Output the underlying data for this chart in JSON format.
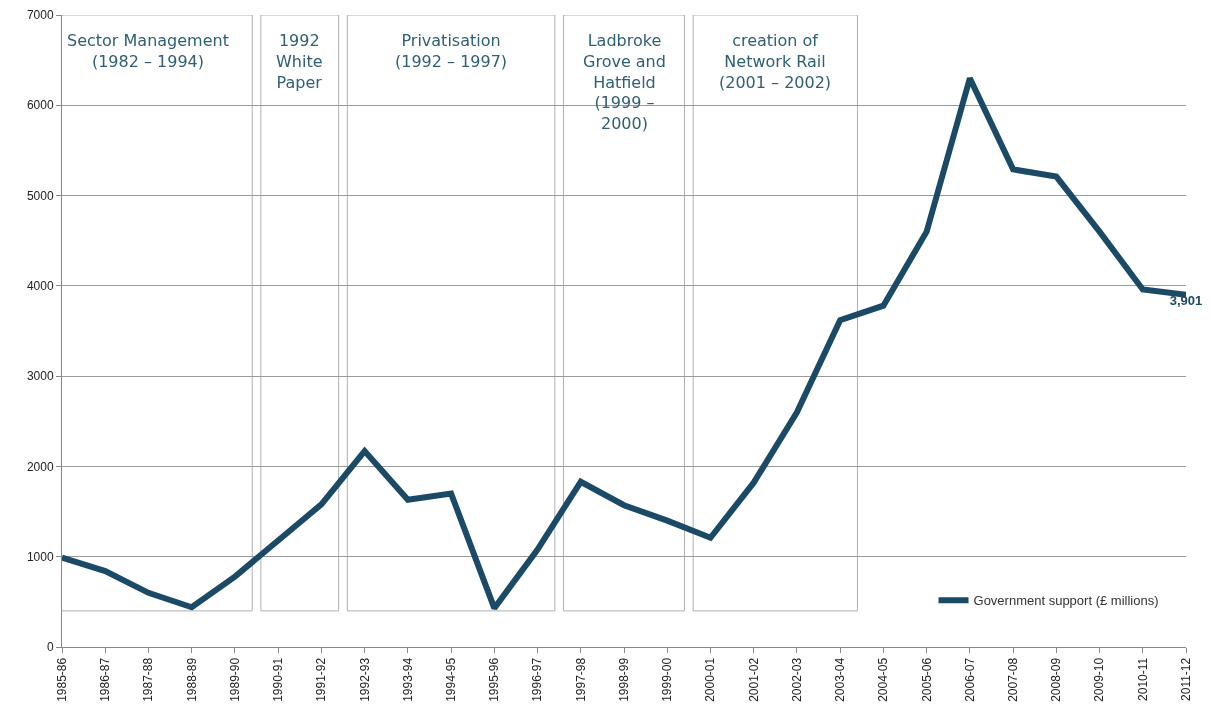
{
  "chart_data": {
    "type": "line",
    "categories": [
      "1985-86",
      "1986-87",
      "1987-88",
      "1988-89",
      "1989-90",
      "1990-91",
      "1991-92",
      "1992-93",
      "1993-94",
      "1994-95",
      "1995-96",
      "1996-97",
      "1997-98",
      "1998-99",
      "1999-00",
      "2000-01",
      "2001-02",
      "2002-03",
      "2003-04",
      "2004-05",
      "2005-06",
      "2006-07",
      "2007-08",
      "2008-09",
      "2009-10",
      "2010-11",
      "2011-12"
    ],
    "series": [
      {
        "name": "Government support (£ millions)",
        "color": "#1b4a66",
        "values": [
          990,
          840,
          600,
          440,
          780,
          1180,
          1580,
          2170,
          1630,
          1700,
          430,
          1080,
          1830,
          1570,
          1400,
          1210,
          1820,
          2600,
          3620,
          3780,
          4600,
          6300,
          5290,
          5210,
          4600,
          3960,
          3901
        ],
        "value_labels": [
          null,
          null,
          null,
          null,
          null,
          null,
          null,
          null,
          null,
          null,
          null,
          null,
          null,
          null,
          null,
          null,
          null,
          null,
          null,
          null,
          null,
          null,
          null,
          null,
          null,
          null,
          "3,901"
        ]
      }
    ],
    "ylim": [
      0,
      7000
    ],
    "yticks": [
      0,
      1000,
      2000,
      3000,
      4000,
      5000,
      6000,
      7000
    ],
    "grid": "y",
    "legend": "bottom right",
    "marker": "none",
    "line_style": "solid",
    "bands": [
      {
        "axis": "x",
        "from": "1985-86",
        "to": "1989-90",
        "label": "Sector Management (1982 – 1994)"
      },
      {
        "axis": "x",
        "from": "1990-91",
        "to": "1991-92",
        "label": "1992 White Paper"
      },
      {
        "axis": "x",
        "from": "1992-93",
        "to": "1996-97",
        "label": "Privatisation (1992 – 1997)"
      },
      {
        "axis": "x",
        "from": "1997-98",
        "to": "1999-00",
        "label": "Ladbroke Grove and Hatfield (1999 – 2000)"
      },
      {
        "axis": "x",
        "from": "2000-01",
        "to": "2003-04",
        "label": "creation of Network Rail (2001 – 2002)"
      }
    ]
  }
}
